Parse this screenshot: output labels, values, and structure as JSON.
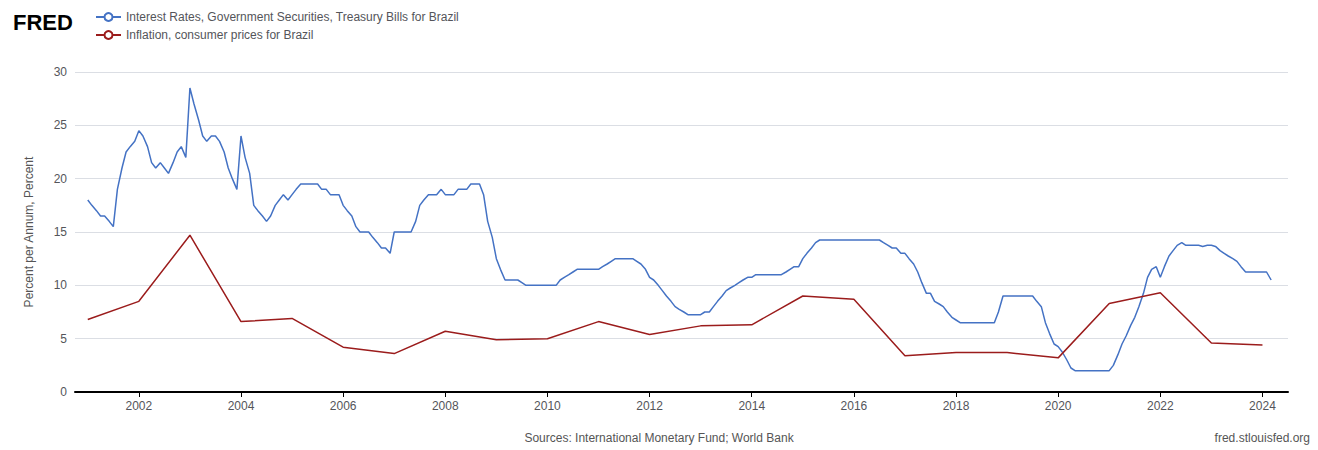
{
  "chart_data": {
    "type": "line",
    "title": "FRED",
    "ylabel": "Percent per Annum, Percent",
    "annotations": [
      "Sources: International Monetary Fund; World Bank",
      "fred.stlouisfed.org"
    ],
    "legend": "top left",
    "grid": true,
    "xlim": [
      2000.75,
      2024.5
    ],
    "xticks": [
      2002,
      2004,
      2006,
      2008,
      2010,
      2012,
      2014,
      2016,
      2018,
      2020,
      2022,
      2024
    ],
    "ylim": [
      0,
      30
    ],
    "yticks": [
      0,
      5,
      10,
      15,
      20,
      25,
      30
    ],
    "series": [
      {
        "name": "Interest Rates, Government Securities, Treasury Bills for Brazil",
        "color": "#4472c4",
        "x": [
          2001.0,
          2001.08,
          2001.17,
          2001.25,
          2001.33,
          2001.42,
          2001.5,
          2001.58,
          2001.67,
          2001.75,
          2001.83,
          2001.92,
          2002.0,
          2002.08,
          2002.17,
          2002.25,
          2002.33,
          2002.42,
          2002.5,
          2002.58,
          2002.67,
          2002.75,
          2002.83,
          2002.92,
          2003.0,
          2003.08,
          2003.17,
          2003.25,
          2003.33,
          2003.42,
          2003.5,
          2003.58,
          2003.67,
          2003.75,
          2003.83,
          2003.92,
          2004.0,
          2004.08,
          2004.17,
          2004.25,
          2004.33,
          2004.42,
          2004.5,
          2004.58,
          2004.67,
          2004.75,
          2004.83,
          2004.92,
          2005.0,
          2005.08,
          2005.17,
          2005.25,
          2005.33,
          2005.42,
          2005.5,
          2005.58,
          2005.67,
          2005.75,
          2005.83,
          2005.92,
          2006.0,
          2006.08,
          2006.17,
          2006.25,
          2006.33,
          2006.42,
          2006.5,
          2006.58,
          2006.67,
          2006.75,
          2006.83,
          2006.92,
          2007.0,
          2007.08,
          2007.17,
          2007.25,
          2007.33,
          2007.42,
          2007.5,
          2007.58,
          2007.67,
          2007.75,
          2007.83,
          2007.92,
          2008.0,
          2008.08,
          2008.17,
          2008.25,
          2008.33,
          2008.42,
          2008.5,
          2008.58,
          2008.67,
          2008.75,
          2008.83,
          2008.92,
          2009.0,
          2009.08,
          2009.17,
          2009.25,
          2009.33,
          2009.42,
          2009.5,
          2009.58,
          2009.67,
          2009.75,
          2009.83,
          2009.92,
          2010.0,
          2010.08,
          2010.17,
          2010.25,
          2010.33,
          2010.42,
          2010.5,
          2010.58,
          2010.67,
          2010.75,
          2010.83,
          2010.92,
          2011.0,
          2011.08,
          2011.17,
          2011.25,
          2011.33,
          2011.42,
          2011.5,
          2011.58,
          2011.67,
          2011.75,
          2011.83,
          2011.92,
          2012.0,
          2012.08,
          2012.17,
          2012.25,
          2012.33,
          2012.42,
          2012.5,
          2012.58,
          2012.67,
          2012.75,
          2012.83,
          2012.92,
          2013.0,
          2013.08,
          2013.17,
          2013.25,
          2013.33,
          2013.42,
          2013.5,
          2013.58,
          2013.67,
          2013.75,
          2013.83,
          2013.92,
          2014.0,
          2014.08,
          2014.17,
          2014.25,
          2014.33,
          2014.42,
          2014.5,
          2014.58,
          2014.67,
          2014.75,
          2014.83,
          2014.92,
          2015.0,
          2015.08,
          2015.17,
          2015.25,
          2015.33,
          2015.42,
          2015.5,
          2015.58,
          2015.67,
          2015.75,
          2015.83,
          2015.92,
          2016.0,
          2016.08,
          2016.17,
          2016.25,
          2016.33,
          2016.42,
          2016.5,
          2016.58,
          2016.67,
          2016.75,
          2016.83,
          2016.92,
          2017.0,
          2017.08,
          2017.17,
          2017.25,
          2017.33,
          2017.42,
          2017.5,
          2017.58,
          2017.67,
          2017.75,
          2017.83,
          2017.92,
          2018.0,
          2018.08,
          2018.17,
          2018.25,
          2018.33,
          2018.42,
          2018.5,
          2018.58,
          2018.67,
          2018.75,
          2018.83,
          2018.92,
          2019.0,
          2019.08,
          2019.17,
          2019.25,
          2019.33,
          2019.42,
          2019.5,
          2019.58,
          2019.67,
          2019.75,
          2019.83,
          2019.92,
          2020.0,
          2020.08,
          2020.17,
          2020.25,
          2020.33,
          2020.42,
          2020.5,
          2020.58,
          2020.67,
          2020.75,
          2020.83,
          2020.92,
          2021.0,
          2021.08,
          2021.17,
          2021.25,
          2021.33,
          2021.42,
          2021.5,
          2021.58,
          2021.67,
          2021.75,
          2021.83,
          2021.92,
          2022.0,
          2022.08,
          2022.17,
          2022.25,
          2022.33,
          2022.42,
          2022.5,
          2022.58,
          2022.67,
          2022.75,
          2022.83,
          2022.92,
          2023.0,
          2023.08,
          2023.17,
          2023.25,
          2023.33,
          2023.42,
          2023.5,
          2023.58,
          2023.67,
          2023.75,
          2023.83,
          2023.92,
          2024.0,
          2024.08,
          2024.17
        ],
        "values": [
          18.0,
          17.5,
          17.0,
          16.5,
          16.5,
          16.0,
          15.5,
          19.0,
          21.0,
          22.5,
          23.0,
          23.5,
          24.5,
          24.0,
          23.0,
          21.5,
          21.0,
          21.5,
          21.0,
          20.5,
          21.5,
          22.5,
          23.0,
          22.0,
          28.5,
          27.0,
          25.5,
          24.0,
          23.5,
          24.0,
          24.0,
          23.5,
          22.5,
          21.0,
          20.0,
          19.0,
          24.0,
          22.0,
          20.5,
          17.5,
          17.0,
          16.5,
          16.0,
          16.5,
          17.5,
          18.0,
          18.5,
          18.0,
          18.5,
          19.0,
          19.5,
          19.5,
          19.5,
          19.5,
          19.5,
          19.0,
          19.0,
          18.5,
          18.5,
          18.5,
          17.5,
          17.0,
          16.5,
          15.5,
          15.0,
          15.0,
          15.0,
          14.5,
          14.0,
          13.5,
          13.5,
          13.0,
          15.0,
          15.0,
          15.0,
          15.0,
          15.0,
          16.0,
          17.5,
          18.0,
          18.5,
          18.5,
          18.5,
          19.0,
          18.5,
          18.5,
          18.5,
          19.0,
          19.0,
          19.0,
          19.5,
          19.5,
          19.5,
          18.5,
          16.0,
          14.5,
          12.5,
          11.5,
          10.5,
          10.5,
          10.5,
          10.5,
          10.25,
          10.0,
          10.0,
          10.0,
          10.0,
          10.0,
          10.0,
          10.0,
          10.0,
          10.5,
          10.75,
          11.0,
          11.25,
          11.5,
          11.5,
          11.5,
          11.5,
          11.5,
          11.5,
          11.75,
          12.0,
          12.25,
          12.5,
          12.5,
          12.5,
          12.5,
          12.5,
          12.25,
          12.0,
          11.5,
          10.75,
          10.5,
          10.0,
          9.5,
          9.0,
          8.5,
          8.0,
          7.75,
          7.5,
          7.25,
          7.25,
          7.25,
          7.25,
          7.5,
          7.5,
          8.0,
          8.5,
          9.0,
          9.5,
          9.75,
          10.0,
          10.25,
          10.5,
          10.75,
          10.75,
          11.0,
          11.0,
          11.0,
          11.0,
          11.0,
          11.0,
          11.0,
          11.25,
          11.5,
          11.75,
          11.75,
          12.5,
          13.0,
          13.5,
          14.0,
          14.25,
          14.25,
          14.25,
          14.25,
          14.25,
          14.25,
          14.25,
          14.25,
          14.25,
          14.25,
          14.25,
          14.25,
          14.25,
          14.25,
          14.25,
          14.0,
          13.75,
          13.5,
          13.5,
          13.0,
          13.0,
          12.5,
          12.0,
          11.25,
          10.25,
          9.25,
          9.25,
          8.5,
          8.25,
          8.0,
          7.5,
          7.0,
          6.75,
          6.5,
          6.5,
          6.5,
          6.5,
          6.5,
          6.5,
          6.5,
          6.5,
          6.5,
          7.5,
          9.0,
          9.0,
          9.0,
          9.0,
          9.0,
          9.0,
          9.0,
          9.0,
          8.5,
          8.0,
          6.5,
          5.5,
          4.5,
          4.25,
          3.75,
          3.0,
          2.25,
          2.0,
          2.0,
          2.0,
          2.0,
          2.0,
          2.0,
          2.0,
          2.0,
          2.0,
          2.5,
          3.5,
          4.5,
          5.25,
          6.25,
          7.0,
          8.0,
          9.25,
          10.75,
          11.5,
          11.75,
          10.75,
          11.75,
          12.75,
          13.25,
          13.75,
          14.0,
          13.75,
          13.75,
          13.75,
          13.75,
          13.65,
          13.75,
          13.75,
          13.65,
          13.25,
          13.0,
          12.75,
          12.5,
          12.25,
          11.75,
          11.25,
          11.25,
          11.25,
          11.25,
          11.25,
          11.25,
          10.5
        ]
      },
      {
        "name": "Inflation, consumer prices for Brazil",
        "color": "#9b1c1c",
        "x": [
          2001.0,
          2002.0,
          2003.0,
          2004.0,
          2005.0,
          2006.0,
          2007.0,
          2008.0,
          2009.0,
          2010.0,
          2011.0,
          2012.0,
          2013.0,
          2014.0,
          2015.0,
          2016.0,
          2017.0,
          2018.0,
          2019.0,
          2020.0,
          2021.0,
          2022.0,
          2023.0,
          2024.0
        ],
        "values": [
          6.8,
          8.5,
          14.7,
          6.6,
          6.9,
          4.2,
          3.6,
          5.7,
          4.9,
          5.0,
          6.6,
          5.4,
          6.2,
          6.3,
          9.0,
          8.7,
          3.4,
          3.7,
          3.7,
          3.2,
          8.3,
          9.3,
          4.6,
          4.4
        ]
      }
    ]
  }
}
